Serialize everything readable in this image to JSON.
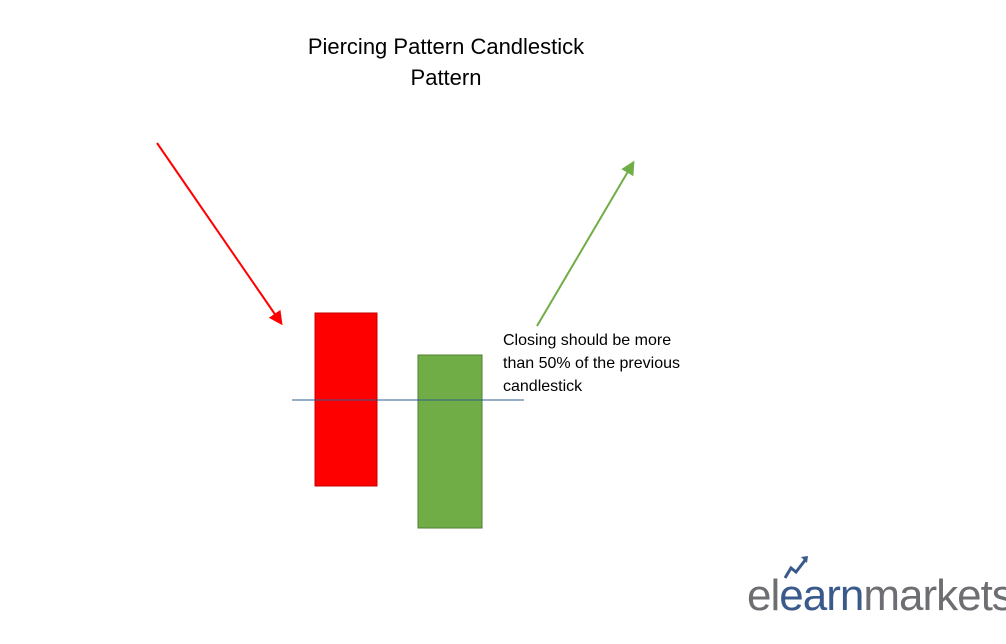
{
  "title": {
    "line1": "Piercing Pattern Candlestick",
    "line2": "Pattern"
  },
  "note": {
    "line1": "Closing should be more",
    "line2": "than 50% of the previous",
    "line3": "candlestick"
  },
  "logo": {
    "part1": "el",
    "part2": "earn",
    "part3": "markets"
  },
  "colors": {
    "bearish": "#ff0000",
    "bullish": "#70ad47",
    "midline": "#2e5d8e",
    "logo_gray": "#6d6e71",
    "logo_blue": "#3a5a8c"
  },
  "icons": {
    "downtrend": "down-arrow-icon",
    "uptrend": "up-arrow-icon",
    "logo_mark": "trend-arrow-icon"
  }
}
